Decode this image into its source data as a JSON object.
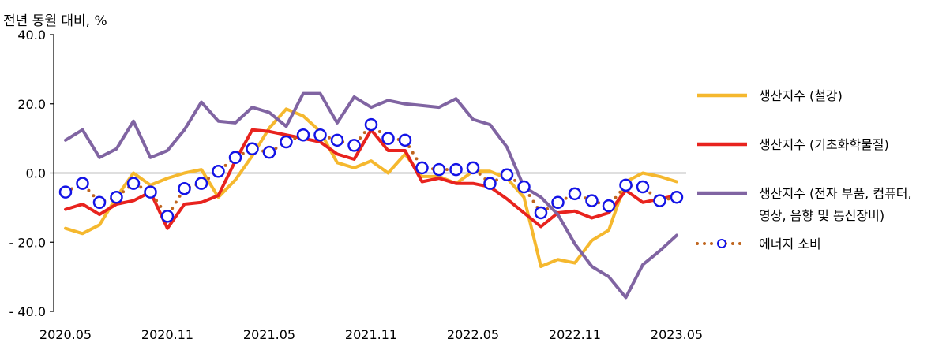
{
  "chart_data": {
    "type": "line",
    "ylabel": "전년 동월 대비, %",
    "ylim": [
      -40,
      40
    ],
    "yticks": [
      40,
      20,
      0,
      -20,
      -40
    ],
    "ytick_labels": [
      "40.0",
      "20.0",
      "0.0",
      "- 20.0",
      "- 40.0"
    ],
    "xtick_labels": [
      "2020.05",
      "2020.11",
      "2021.05",
      "2021.11",
      "2022.05",
      "2022.11",
      "2023.05"
    ],
    "x": [
      "2020.05",
      "2020.06",
      "2020.07",
      "2020.08",
      "2020.09",
      "2020.10",
      "2020.11",
      "2020.12",
      "2021.01",
      "2021.02",
      "2021.03",
      "2021.04",
      "2021.05",
      "2021.06",
      "2021.07",
      "2021.08",
      "2021.09",
      "2021.10",
      "2021.11",
      "2021.12",
      "2022.01",
      "2022.02",
      "2022.03",
      "2022.04",
      "2022.05",
      "2022.06",
      "2022.07",
      "2022.08",
      "2022.09",
      "2022.10",
      "2022.11",
      "2022.12",
      "2023.01",
      "2023.02",
      "2023.03",
      "2023.04",
      "2023.05"
    ],
    "grid": false,
    "legend_position": "right",
    "series": [
      {
        "name": "생산지수 (철강)",
        "color": "#F5B82E",
        "style": "line",
        "values": [
          -16.0,
          -17.5,
          -15.0,
          -7.0,
          0.0,
          -3.5,
          -1.5,
          0.0,
          1.0,
          -7.0,
          -2.0,
          5.0,
          13.0,
          18.5,
          16.5,
          12.0,
          3.0,
          1.5,
          3.5,
          0.0,
          5.5,
          -1.0,
          -1.0,
          -3.0,
          0.5,
          0.5,
          -1.5,
          -7.0,
          -27.0,
          -25.0,
          -26.0,
          -19.5,
          -16.5,
          -2.5,
          0.0,
          -1.0,
          -2.5
        ]
      },
      {
        "name": "생산지수 (기초화학물질)",
        "color": "#E8231E",
        "style": "line",
        "values": [
          -10.5,
          -9.0,
          -12.0,
          -9.0,
          -8.0,
          -5.5,
          -16.0,
          -9.0,
          -8.5,
          -6.5,
          3.5,
          12.5,
          12.0,
          11.0,
          10.0,
          9.0,
          5.5,
          4.0,
          12.5,
          6.5,
          6.5,
          -2.5,
          -1.5,
          -3.0,
          -3.0,
          -4.0,
          -7.5,
          -11.5,
          -15.5,
          -11.5,
          -11.0,
          -13.0,
          -11.5,
          -5.0,
          -8.5,
          -7.5,
          -6.5
        ]
      },
      {
        "name": "생산지수 (전자 부품, 컴퓨터, 영상, 음향 및 통신장비)",
        "color": "#8064A2",
        "style": "line",
        "values": [
          9.5,
          12.5,
          4.5,
          7.0,
          15.0,
          4.5,
          6.5,
          12.5,
          20.5,
          15.0,
          14.5,
          19.0,
          17.5,
          13.5,
          23.0,
          23.0,
          14.5,
          22.0,
          19.0,
          21.0,
          20.0,
          19.5,
          19.0,
          21.5,
          15.5,
          14.0,
          7.5,
          -4.0,
          -7.0,
          -12.0,
          -20.5,
          -27.0,
          -30.0,
          -36.0,
          -26.5,
          -22.5,
          -18.0
        ]
      },
      {
        "name": "에너지 소비",
        "color": "#C0651E",
        "marker_color": "#1414E6",
        "style": "dotted-markers",
        "values": [
          -5.5,
          -3.0,
          -8.5,
          -7.0,
          -3.0,
          -5.5,
          -12.5,
          -4.5,
          -3.0,
          0.5,
          4.5,
          7.0,
          6.0,
          9.0,
          11.0,
          11.0,
          9.5,
          8.0,
          14.0,
          10.0,
          9.5,
          1.5,
          1.0,
          1.0,
          1.5,
          -3.0,
          -0.5,
          -4.0,
          -11.5,
          -8.5,
          -6.0,
          -8.0,
          -9.5,
          -3.5,
          -4.0,
          -8.0,
          -7.0
        ]
      }
    ]
  }
}
